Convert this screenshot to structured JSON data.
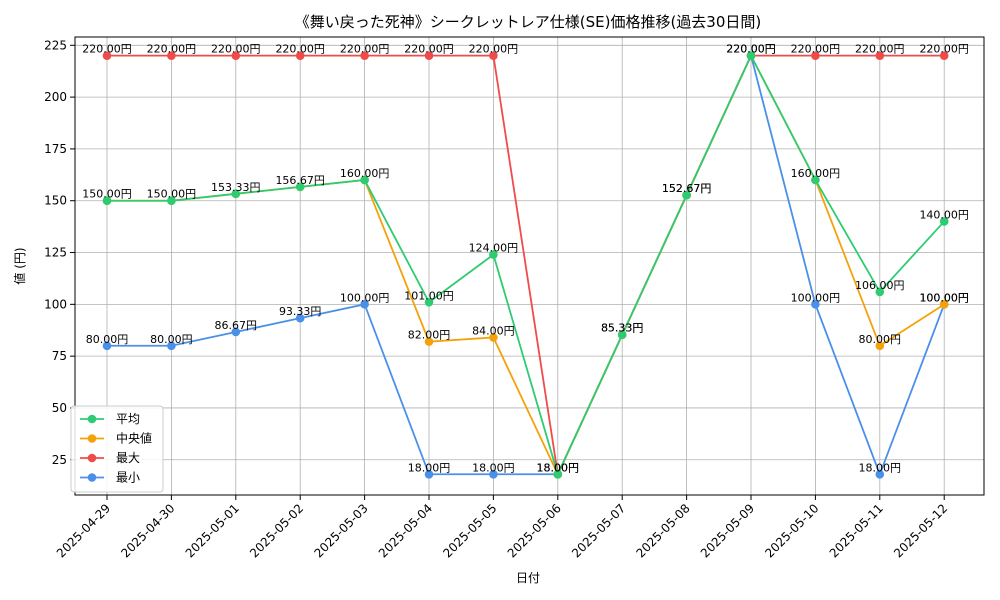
{
  "chart_data": {
    "type": "line",
    "title": "《舞い戻った死神》シークレットレア仕様(SE)価格推移(過去30日間)",
    "xlabel": "日付",
    "ylabel": "値 (円)",
    "ylim": [
      8,
      229
    ],
    "yticks": [
      25,
      50,
      75,
      100,
      125,
      150,
      175,
      200,
      225
    ],
    "grid": true,
    "legend_position": "lower-left",
    "categories": [
      "2025-04-29",
      "2025-04-30",
      "2025-05-01",
      "2025-05-02",
      "2025-05-03",
      "2025-05-04",
      "2025-05-05",
      "2025-05-06",
      "2025-05-07",
      "2025-05-08",
      "2025-05-09",
      "2025-05-10",
      "2025-05-11",
      "2025-05-12"
    ],
    "series": [
      {
        "name": "平均",
        "color": "#2ecc71",
        "values": [
          150,
          150,
          153.33,
          156.67,
          160,
          101,
          124,
          18,
          85.33,
          152.67,
          220,
          160,
          106,
          140
        ],
        "labels": [
          "",
          "",
          "",
          "",
          "",
          "101.00円",
          "124.00円",
          "",
          "",
          "",
          "",
          "",
          "106.00円",
          "140.00円"
        ]
      },
      {
        "name": "中央値",
        "color": "#f5a20a",
        "values": [
          150,
          150,
          153.33,
          156.67,
          160,
          82,
          84,
          18,
          85.33,
          152.67,
          220,
          160,
          80,
          100
        ],
        "labels": [
          "150.00円",
          "150.00円",
          "153.33円",
          "156.67円",
          "160.00円",
          "82.00円",
          "84.00円",
          "",
          "85.33円",
          "152.67円",
          "",
          "160.00円",
          "80.00円",
          "100.00円"
        ]
      },
      {
        "name": "最大",
        "color": "#ef4b4b",
        "values": [
          220,
          220,
          220,
          220,
          220,
          220,
          220,
          18,
          85.33,
          152.67,
          220,
          220,
          220,
          220
        ],
        "labels": [
          "220.00円",
          "220.00円",
          "220.00円",
          "220.00円",
          "220.00円",
          "220.00円",
          "220.00円",
          "18.00円",
          "",
          "",
          "220.00円",
          "220.00円",
          "220.00円",
          "220.00円"
        ]
      },
      {
        "name": "最小",
        "color": "#4a90e8",
        "values": [
          80,
          80,
          86.67,
          93.33,
          100,
          18,
          18,
          18,
          85.33,
          152.67,
          220,
          100,
          18,
          100
        ],
        "labels": [
          "80.00円",
          "80.00円",
          "86.67円",
          "93.33円",
          "100.00円",
          "18.00円",
          "18.00円",
          "18.00円",
          "85.33円",
          "152.67円",
          "220.00円",
          "100.00円",
          "18.00円",
          "100.00円"
        ]
      }
    ]
  }
}
